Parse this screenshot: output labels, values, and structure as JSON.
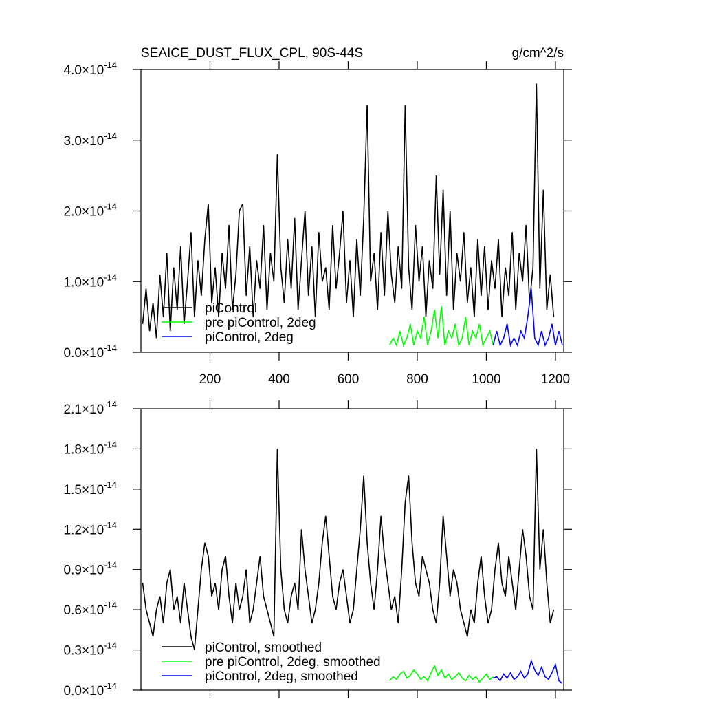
{
  "chart_data": [
    {
      "type": "line",
      "title": "SEAICE_DUST_FLUX_CPL, 90S-44S",
      "units": "g/cm^2/s",
      "legend": "lower left",
      "xlim": [
        0,
        1224
      ],
      "xticks": [
        200,
        400,
        600,
        800,
        1000,
        1200
      ],
      "ylim": [
        0,
        4e-14
      ],
      "yticks": [
        {
          "value": 0,
          "label": "0.0×10",
          "exponent": "-14"
        },
        {
          "value": 1e-14,
          "label": "1.0×10",
          "exponent": "-14"
        },
        {
          "value": 2e-14,
          "label": "2.0×10",
          "exponent": "-14"
        },
        {
          "value": 3e-14,
          "label": "3.0×10",
          "exponent": "-14"
        },
        {
          "value": 4e-14,
          "label": "4.0×10",
          "exponent": "-14"
        }
      ],
      "series": [
        {
          "name": "piControl",
          "color": "#000000",
          "x": [
            5,
            15,
            25,
            35,
            45,
            55,
            65,
            75,
            85,
            95,
            105,
            115,
            125,
            135,
            145,
            155,
            165,
            175,
            185,
            195,
            205,
            215,
            225,
            235,
            245,
            255,
            265,
            275,
            285,
            295,
            305,
            315,
            325,
            335,
            345,
            355,
            365,
            375,
            385,
            395,
            405,
            415,
            425,
            435,
            445,
            455,
            465,
            475,
            485,
            495,
            505,
            515,
            525,
            535,
            545,
            555,
            565,
            575,
            585,
            595,
            605,
            615,
            625,
            635,
            645,
            655,
            665,
            675,
            685,
            695,
            705,
            715,
            725,
            735,
            745,
            755,
            765,
            775,
            785,
            795,
            805,
            815,
            825,
            835,
            845,
            855,
            865,
            875,
            885,
            895,
            905,
            915,
            925,
            935,
            945,
            955,
            965,
            975,
            985,
            995,
            1005,
            1015,
            1025,
            1035,
            1045,
            1055,
            1065,
            1075,
            1085,
            1095,
            1105,
            1115,
            1125,
            1135,
            1145,
            1155,
            1165,
            1175,
            1185,
            1195
          ],
          "values": [
            4e-15,
            9e-15,
            3e-15,
            7e-15,
            2e-15,
            1.1e-14,
            5e-15,
            1.4e-14,
            3e-15,
            1.2e-14,
            6e-15,
            1.5e-14,
            4e-15,
            1e-14,
            1.7e-14,
            5e-15,
            1.3e-14,
            8e-15,
            1.6e-14,
            2.1e-14,
            7e-15,
            1.2e-14,
            5e-15,
            1.4e-14,
            9e-15,
            1.8e-14,
            6e-15,
            1.1e-14,
            2e-14,
            2.1e-14,
            8e-15,
            1.5e-14,
            5e-15,
            1.3e-14,
            9e-15,
            1.8e-14,
            6e-15,
            1.4e-14,
            1e-14,
            2.8e-14,
            1.2e-14,
            7e-15,
            1.6e-14,
            9e-15,
            1.9e-14,
            6e-15,
            1.3e-14,
            2e-14,
            8e-15,
            1.5e-14,
            5e-15,
            1.7e-14,
            1e-14,
            1.2e-14,
            6e-15,
            1.8e-14,
            9e-15,
            1.4e-14,
            2e-14,
            7e-15,
            1.3e-14,
            5e-15,
            1.6e-14,
            8e-15,
            1.9e-14,
            3.5e-14,
            1e-14,
            1.4e-14,
            6e-15,
            1.7e-14,
            8e-15,
            2e-14,
            1.1e-14,
            7e-15,
            1.5e-14,
            9e-15,
            3.5e-14,
            1.2e-14,
            6e-15,
            1.8e-14,
            1e-14,
            1.5e-14,
            5e-15,
            1.3e-14,
            9e-15,
            2.5e-14,
            1.1e-14,
            2.3e-14,
            8e-15,
            2e-14,
            6e-15,
            1.4e-14,
            1e-14,
            1.7e-14,
            7e-15,
            1.2e-14,
            5e-15,
            1.6e-14,
            8e-15,
            1.5e-14,
            6e-15,
            1.3e-14,
            9e-15,
            1.6e-14,
            5e-15,
            1.2e-14,
            8e-15,
            1.7e-14,
            6e-15,
            1.4e-14,
            1e-14,
            1.8e-14,
            7e-15,
            1.2e-14,
            3.8e-14,
            9e-15,
            2.3e-14,
            6e-15,
            1.1e-14,
            5e-15
          ]
        },
        {
          "name": "pre piControl, 2deg",
          "color": "#00ff00",
          "x": [
            720,
            730,
            740,
            750,
            760,
            770,
            780,
            790,
            800,
            810,
            820,
            830,
            840,
            850,
            860,
            870,
            880,
            890,
            900,
            910,
            920,
            930,
            940,
            950,
            960,
            970,
            980,
            990,
            1000,
            1010,
            1020
          ],
          "values": [
            1e-15,
            2e-15,
            1e-15,
            3e-15,
            1e-15,
            2e-15,
            4e-15,
            1e-15,
            3e-15,
            2e-15,
            5e-15,
            1e-15,
            3e-15,
            6e-15,
            2e-15,
            6.5e-15,
            1e-15,
            3e-15,
            2e-15,
            4e-15,
            1e-15,
            2e-15,
            5e-15,
            1e-15,
            3e-15,
            2e-15,
            4e-15,
            1e-15,
            2e-15,
            3e-15,
            1e-15
          ]
        },
        {
          "name": "piControl, 2deg",
          "color": "#0000ff",
          "x": [
            1020,
            1030,
            1040,
            1050,
            1060,
            1070,
            1080,
            1090,
            1100,
            1110,
            1120,
            1130,
            1140,
            1150,
            1160,
            1170,
            1180,
            1190,
            1200,
            1210,
            1220
          ],
          "values": [
            1e-15,
            3e-15,
            1e-15,
            2e-15,
            4e-15,
            1e-15,
            2e-15,
            1e-15,
            3e-15,
            2e-15,
            5e-15,
            9e-15,
            2e-15,
            1e-15,
            3e-15,
            1e-15,
            2e-15,
            4e-15,
            1e-15,
            3e-15,
            1e-15
          ]
        }
      ]
    },
    {
      "type": "line",
      "legend": "lower left",
      "xlim": [
        0,
        1224
      ],
      "ylim": [
        0,
        2.1e-14
      ],
      "yticks": [
        {
          "value": 0,
          "label": "0.0×10",
          "exponent": "-14"
        },
        {
          "value": 3e-15,
          "label": "0.3×10",
          "exponent": "-14"
        },
        {
          "value": 6e-15,
          "label": "0.6×10",
          "exponent": "-14"
        },
        {
          "value": 9e-15,
          "label": "0.9×10",
          "exponent": "-14"
        },
        {
          "value": 1.2e-14,
          "label": "1.2×10",
          "exponent": "-14"
        },
        {
          "value": 1.5e-14,
          "label": "1.5×10",
          "exponent": "-14"
        },
        {
          "value": 1.8e-14,
          "label": "1.8×10",
          "exponent": "-14"
        },
        {
          "value": 2.1e-14,
          "label": "2.1×10",
          "exponent": "-14"
        }
      ],
      "series": [
        {
          "name": "piControl, smoothed",
          "color": "#000000",
          "x": [
            5,
            15,
            25,
            35,
            45,
            55,
            65,
            75,
            85,
            95,
            105,
            115,
            125,
            135,
            145,
            155,
            165,
            175,
            185,
            195,
            205,
            215,
            225,
            235,
            245,
            255,
            265,
            275,
            285,
            295,
            305,
            315,
            325,
            335,
            345,
            355,
            365,
            375,
            385,
            395,
            405,
            415,
            425,
            435,
            445,
            455,
            465,
            475,
            485,
            495,
            505,
            515,
            525,
            535,
            545,
            555,
            565,
            575,
            585,
            595,
            605,
            615,
            625,
            635,
            645,
            655,
            665,
            675,
            685,
            695,
            705,
            715,
            725,
            735,
            745,
            755,
            765,
            775,
            785,
            795,
            805,
            815,
            825,
            835,
            845,
            855,
            865,
            875,
            885,
            895,
            905,
            915,
            925,
            935,
            945,
            955,
            965,
            975,
            985,
            995,
            1005,
            1015,
            1025,
            1035,
            1045,
            1055,
            1065,
            1075,
            1085,
            1095,
            1105,
            1115,
            1125,
            1135,
            1145,
            1155,
            1165,
            1175,
            1185,
            1195
          ],
          "values": [
            8e-15,
            6e-15,
            5e-15,
            4e-15,
            6e-15,
            7e-15,
            5e-15,
            8e-15,
            9e-15,
            6e-15,
            7e-15,
            5e-15,
            8e-15,
            6e-15,
            4e-15,
            3e-15,
            6e-15,
            9e-15,
            1.1e-14,
            1e-14,
            7e-15,
            8e-15,
            6e-15,
            9e-15,
            1e-14,
            7e-15,
            5e-15,
            8e-15,
            6e-15,
            7e-15,
            9e-15,
            5e-15,
            6e-15,
            8e-15,
            1e-14,
            7e-15,
            6e-15,
            5e-15,
            4e-15,
            1.8e-14,
            9e-15,
            6e-15,
            5e-15,
            7e-15,
            8e-15,
            6e-15,
            1.2e-14,
            9e-15,
            7e-15,
            5e-15,
            6e-15,
            8e-15,
            1.1e-14,
            1.3e-14,
            1e-14,
            7e-15,
            6e-15,
            8e-15,
            9e-15,
            7e-15,
            5e-15,
            6e-15,
            9e-15,
            1.2e-14,
            1.6e-14,
            1.1e-14,
            8e-15,
            6e-15,
            9e-15,
            1.3e-14,
            1e-14,
            8e-15,
            6e-15,
            7e-15,
            5e-15,
            9e-15,
            1.4e-14,
            1.6e-14,
            1.1e-14,
            8e-15,
            7e-15,
            1e-14,
            9e-15,
            8e-15,
            6e-15,
            5e-15,
            8e-15,
            1.3e-14,
            1e-14,
            7e-15,
            9e-15,
            8e-15,
            6e-15,
            5e-15,
            4e-15,
            6e-15,
            5e-15,
            8e-15,
            1e-14,
            7e-15,
            5e-15,
            6e-15,
            9e-15,
            1.1e-14,
            8e-15,
            7e-15,
            1e-14,
            8e-15,
            6e-15,
            9e-15,
            1.2e-14,
            1e-14,
            7e-15,
            6e-15,
            1.8e-14,
            9e-15,
            1.2e-14,
            8e-15,
            5e-15,
            6e-15
          ]
        },
        {
          "name": "pre piControl, 2deg, smoothed",
          "color": "#00ff00",
          "x": [
            720,
            730,
            740,
            750,
            760,
            770,
            780,
            790,
            800,
            810,
            820,
            830,
            840,
            850,
            860,
            870,
            880,
            890,
            900,
            910,
            920,
            930,
            940,
            950,
            960,
            970,
            980,
            990,
            1000,
            1010,
            1020
          ],
          "values": [
            7e-16,
            1e-15,
            8e-16,
            1.2e-15,
            1.4e-15,
            9e-16,
            1.1e-15,
            1.5e-15,
            1.2e-15,
            8e-16,
            1e-15,
            7e-16,
            1.3e-15,
            1.8e-15,
            1.1e-15,
            1.5e-15,
            9e-16,
            1.2e-15,
            8e-16,
            1e-15,
            1.3e-15,
            9e-16,
            7e-16,
            1.1e-15,
            8e-16,
            1e-15,
            6e-16,
            9e-16,
            1.2e-15,
            8e-16,
            1e-15
          ]
        },
        {
          "name": "piControl, 2deg, smoothed",
          "color": "#0000ff",
          "x": [
            1020,
            1030,
            1040,
            1050,
            1060,
            1070,
            1080,
            1090,
            1100,
            1110,
            1120,
            1130,
            1140,
            1150,
            1160,
            1170,
            1180,
            1190,
            1200,
            1210,
            1220
          ],
          "values": [
            9e-16,
            1e-15,
            7e-16,
            1.2e-15,
            9e-16,
            1.3e-15,
            8e-16,
            1e-15,
            1.4e-15,
            9e-16,
            1.2e-15,
            2.2e-15,
            1.5e-15,
            1.1e-15,
            1.7e-15,
            1e-15,
            8e-16,
            1.3e-15,
            1.9e-15,
            7e-16,
            5e-16
          ]
        }
      ]
    }
  ]
}
